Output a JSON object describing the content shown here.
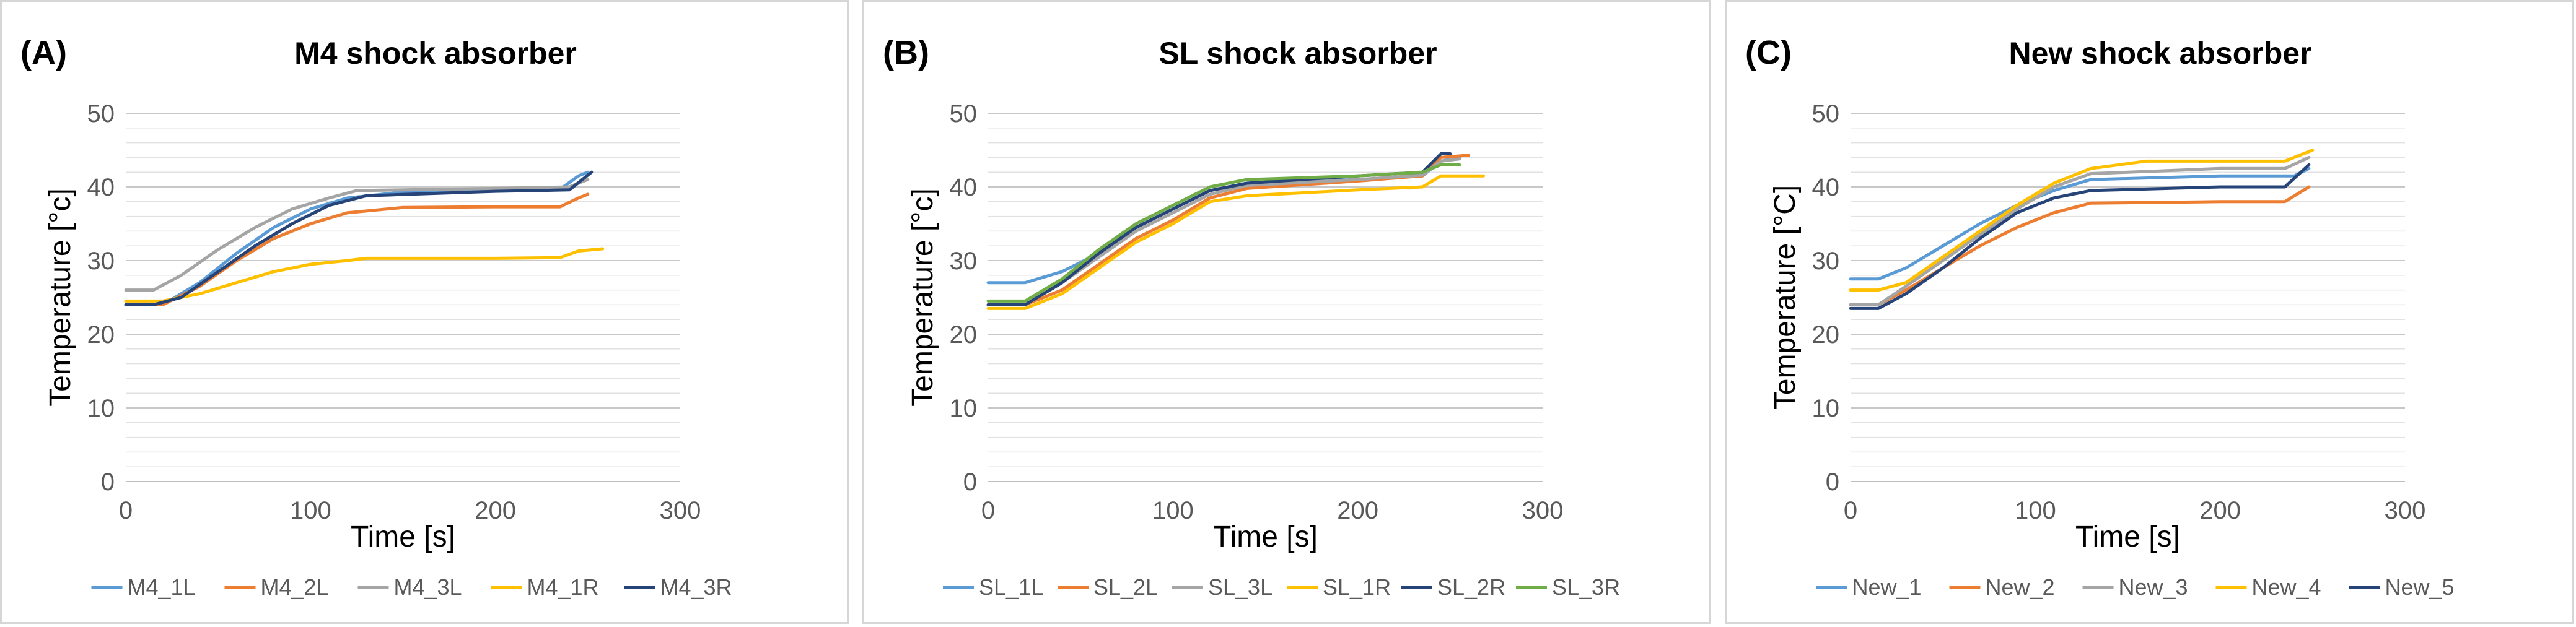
{
  "chart_data": [
    {
      "type": "line",
      "panel_label": "(A)",
      "title": "M4 shock absorber",
      "xlabel": "Time [s]",
      "ylabel": "Temperature [°c]",
      "xlim": [
        0,
        300
      ],
      "ylim": [
        0,
        50
      ],
      "xticks": [
        "0",
        "100",
        "200",
        "300"
      ],
      "yticks": [
        "0",
        "10",
        "20",
        "30",
        "40",
        "50"
      ],
      "grid": true,
      "legend_position": "bottom",
      "series": [
        {
          "name": "M4_1L",
          "color": "#5b9bd5",
          "points": [
            [
              0,
              24
            ],
            [
              20,
              24
            ],
            [
              40,
              27
            ],
            [
              60,
              31
            ],
            [
              80,
              34.5
            ],
            [
              100,
              37
            ],
            [
              120,
              38.5
            ],
            [
              150,
              39.3
            ],
            [
              200,
              39.6
            ],
            [
              235,
              39.7
            ],
            [
              245,
              41.5
            ],
            [
              250,
              42
            ]
          ]
        },
        {
          "name": "M4_2L",
          "color": "#ed7d31",
          "points": [
            [
              0,
              24
            ],
            [
              20,
              24
            ],
            [
              40,
              26.5
            ],
            [
              60,
              30
            ],
            [
              80,
              33
            ],
            [
              100,
              35
            ],
            [
              120,
              36.5
            ],
            [
              150,
              37.2
            ],
            [
              200,
              37.3
            ],
            [
              235,
              37.3
            ],
            [
              245,
              38.5
            ],
            [
              250,
              39
            ]
          ]
        },
        {
          "name": "M4_3L",
          "color": "#a5a5a5",
          "points": [
            [
              0,
              26
            ],
            [
              15,
              26
            ],
            [
              30,
              28
            ],
            [
              50,
              31.5
            ],
            [
              70,
              34.5
            ],
            [
              90,
              37
            ],
            [
              110,
              38.5
            ],
            [
              125,
              39.5
            ],
            [
              200,
              39.8
            ],
            [
              240,
              40
            ],
            [
              250,
              41
            ]
          ]
        },
        {
          "name": "M4_1R",
          "color": "#ffc000",
          "points": [
            [
              0,
              24.5
            ],
            [
              20,
              24.5
            ],
            [
              40,
              25.5
            ],
            [
              60,
              27
            ],
            [
              80,
              28.5
            ],
            [
              100,
              29.5
            ],
            [
              120,
              30
            ],
            [
              130,
              30.3
            ],
            [
              200,
              30.3
            ],
            [
              235,
              30.4
            ],
            [
              245,
              31.3
            ],
            [
              258,
              31.6
            ]
          ]
        },
        {
          "name": "M4_3R",
          "color": "#264478",
          "points": [
            [
              0,
              24
            ],
            [
              15,
              24
            ],
            [
              30,
              25
            ],
            [
              50,
              28.5
            ],
            [
              70,
              32
            ],
            [
              90,
              35
            ],
            [
              110,
              37.5
            ],
            [
              130,
              38.8
            ],
            [
              200,
              39.4
            ],
            [
              240,
              39.6
            ],
            [
              252,
              42
            ]
          ]
        }
      ]
    },
    {
      "type": "line",
      "panel_label": "(B)",
      "title": "SL shock absorber",
      "xlabel": "Time [s]",
      "ylabel": "Temperature [°c]",
      "xlim": [
        0,
        300
      ],
      "ylim": [
        0,
        50
      ],
      "xticks": [
        "0",
        "100",
        "200",
        "300"
      ],
      "yticks": [
        "0",
        "10",
        "20",
        "30",
        "40",
        "50"
      ],
      "grid": true,
      "legend_position": "bottom",
      "series": [
        {
          "name": "SL_1L",
          "color": "#5b9bd5",
          "points": [
            [
              0,
              27
            ],
            [
              20,
              27
            ],
            [
              40,
              28.5
            ],
            [
              60,
              31
            ],
            [
              80,
              34.5
            ],
            [
              100,
              37
            ],
            [
              120,
              39.5
            ],
            [
              140,
              40.5
            ],
            [
              200,
              41
            ],
            [
              235,
              41.5
            ],
            [
              245,
              43.5
            ],
            [
              255,
              44
            ]
          ]
        },
        {
          "name": "SL_2L",
          "color": "#ed7d31",
          "points": [
            [
              0,
              24
            ],
            [
              20,
              24
            ],
            [
              40,
              26
            ],
            [
              60,
              29.5
            ],
            [
              80,
              33
            ],
            [
              100,
              35.5
            ],
            [
              120,
              38.5
            ],
            [
              140,
              39.8
            ],
            [
              200,
              40.8
            ],
            [
              235,
              41.5
            ],
            [
              245,
              44
            ],
            [
              260,
              44.3
            ]
          ]
        },
        {
          "name": "SL_3L",
          "color": "#a5a5a5",
          "points": [
            [
              0,
              24
            ],
            [
              20,
              24
            ],
            [
              40,
              27
            ],
            [
              60,
              30.5
            ],
            [
              80,
              34
            ],
            [
              100,
              36.5
            ],
            [
              120,
              39
            ],
            [
              140,
              40.2
            ],
            [
              200,
              41
            ],
            [
              235,
              41.6
            ],
            [
              245,
              43.5
            ],
            [
              255,
              43.8
            ]
          ]
        },
        {
          "name": "SL_1R",
          "color": "#ffc000",
          "points": [
            [
              0,
              23.5
            ],
            [
              20,
              23.5
            ],
            [
              40,
              25.5
            ],
            [
              60,
              29
            ],
            [
              80,
              32.5
            ],
            [
              100,
              35
            ],
            [
              120,
              38
            ],
            [
              140,
              38.8
            ],
            [
              200,
              39.6
            ],
            [
              235,
              40
            ],
            [
              245,
              41.5
            ],
            [
              268,
              41.5
            ]
          ]
        },
        {
          "name": "SL_2R",
          "color": "#264478",
          "points": [
            [
              0,
              24
            ],
            [
              20,
              24
            ],
            [
              40,
              27
            ],
            [
              60,
              31
            ],
            [
              80,
              34.5
            ],
            [
              100,
              37
            ],
            [
              120,
              39.5
            ],
            [
              140,
              40.5
            ],
            [
              200,
              41.5
            ],
            [
              235,
              42
            ],
            [
              245,
              44.5
            ],
            [
              250,
              44.5
            ]
          ]
        },
        {
          "name": "SL_3R",
          "color": "#70ad47",
          "points": [
            [
              0,
              24.5
            ],
            [
              20,
              24.5
            ],
            [
              40,
              27.5
            ],
            [
              60,
              31.5
            ],
            [
              80,
              35
            ],
            [
              100,
              37.5
            ],
            [
              120,
              40
            ],
            [
              140,
              41
            ],
            [
              200,
              41.5
            ],
            [
              235,
              42
            ],
            [
              245,
              43
            ],
            [
              255,
              43
            ]
          ]
        }
      ]
    },
    {
      "type": "line",
      "panel_label": "(C)",
      "title": "New shock absorber",
      "xlabel": "Time [s]",
      "ylabel": "Temperature [°C]",
      "xlim": [
        0,
        300
      ],
      "ylim": [
        0,
        50
      ],
      "xticks": [
        "0",
        "100",
        "200",
        "300"
      ],
      "yticks": [
        "0",
        "10",
        "20",
        "30",
        "40",
        "50"
      ],
      "grid": true,
      "legend_position": "bottom",
      "series": [
        {
          "name": "New_1",
          "color": "#5b9bd5",
          "points": [
            [
              0,
              27.5
            ],
            [
              15,
              27.5
            ],
            [
              30,
              29
            ],
            [
              50,
              32
            ],
            [
              70,
              35
            ],
            [
              90,
              37.5
            ],
            [
              110,
              39.5
            ],
            [
              130,
              41
            ],
            [
              200,
              41.5
            ],
            [
              240,
              41.5
            ],
            [
              248,
              42.5
            ]
          ]
        },
        {
          "name": "New_2",
          "color": "#ed7d31",
          "points": [
            [
              0,
              24
            ],
            [
              15,
              24
            ],
            [
              30,
              26
            ],
            [
              50,
              29
            ],
            [
              70,
              32
            ],
            [
              90,
              34.5
            ],
            [
              110,
              36.5
            ],
            [
              130,
              37.8
            ],
            [
              200,
              38
            ],
            [
              235,
              38
            ],
            [
              248,
              40
            ]
          ]
        },
        {
          "name": "New_3",
          "color": "#a5a5a5",
          "points": [
            [
              0,
              24
            ],
            [
              15,
              24
            ],
            [
              30,
              26.5
            ],
            [
              50,
              30
            ],
            [
              70,
              33.5
            ],
            [
              90,
              37
            ],
            [
              110,
              40
            ],
            [
              130,
              41.8
            ],
            [
              200,
              42.5
            ],
            [
              235,
              42.5
            ],
            [
              248,
              44
            ]
          ]
        },
        {
          "name": "New_4",
          "color": "#ffc000",
          "points": [
            [
              0,
              26
            ],
            [
              15,
              26
            ],
            [
              30,
              27
            ],
            [
              50,
              30.5
            ],
            [
              70,
              34
            ],
            [
              90,
              37.5
            ],
            [
              110,
              40.5
            ],
            [
              130,
              42.5
            ],
            [
              160,
              43.5
            ],
            [
              200,
              43.5
            ],
            [
              235,
              43.5
            ],
            [
              250,
              45
            ]
          ]
        },
        {
          "name": "New_5",
          "color": "#264478",
          "points": [
            [
              0,
              23.5
            ],
            [
              15,
              23.5
            ],
            [
              30,
              25.5
            ],
            [
              50,
              29
            ],
            [
              70,
              33
            ],
            [
              90,
              36.5
            ],
            [
              110,
              38.5
            ],
            [
              130,
              39.5
            ],
            [
              200,
              40
            ],
            [
              235,
              40
            ],
            [
              248,
              43
            ]
          ]
        }
      ]
    }
  ]
}
